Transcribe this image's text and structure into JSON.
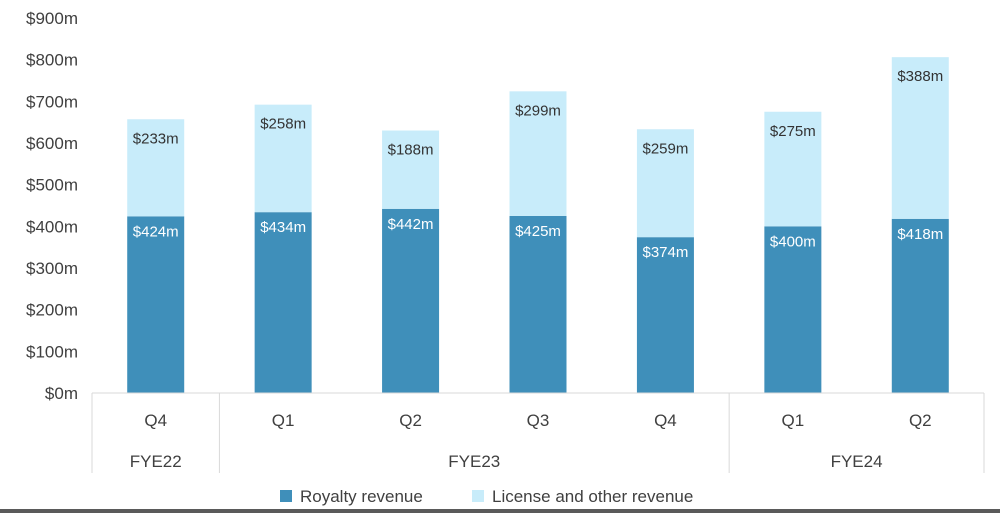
{
  "chart_data": {
    "type": "bar",
    "stacked": true,
    "title": "",
    "xlabel": "",
    "ylabel": "",
    "ylim": [
      0,
      900
    ],
    "y_ticks": [
      "$0m",
      "$100m",
      "$200m",
      "$300m",
      "$400m",
      "$500m",
      "$600m",
      "$700m",
      "$800m",
      "$900m"
    ],
    "y_tick_values": [
      0,
      100,
      200,
      300,
      400,
      500,
      600,
      700,
      800,
      900
    ],
    "categories": [
      "Q4",
      "Q1",
      "Q2",
      "Q3",
      "Q4",
      "Q1",
      "Q2"
    ],
    "groups": [
      {
        "label": "FYE22",
        "start": 0,
        "end": 0
      },
      {
        "label": "FYE23",
        "start": 1,
        "end": 4
      },
      {
        "label": "FYE24",
        "start": 5,
        "end": 6
      }
    ],
    "series": [
      {
        "name": "Royalty revenue",
        "color": "#3f8fba",
        "label_color": "#ffffff",
        "values": [
          424,
          434,
          442,
          425,
          374,
          400,
          418
        ],
        "labels": [
          "$424m",
          "$434m",
          "$442m",
          "$425m",
          "$374m",
          "$400m",
          "$418m"
        ]
      },
      {
        "name": "License and other revenue",
        "color": "#c8ecfa",
        "label_color": "#333333",
        "values": [
          233,
          258,
          188,
          299,
          259,
          275,
          388
        ],
        "labels": [
          "$233m",
          "$258m",
          "$188m",
          "$299m",
          "$259m",
          "$275m",
          "$388m"
        ]
      }
    ],
    "grid": false,
    "legend_position": "bottom"
  }
}
